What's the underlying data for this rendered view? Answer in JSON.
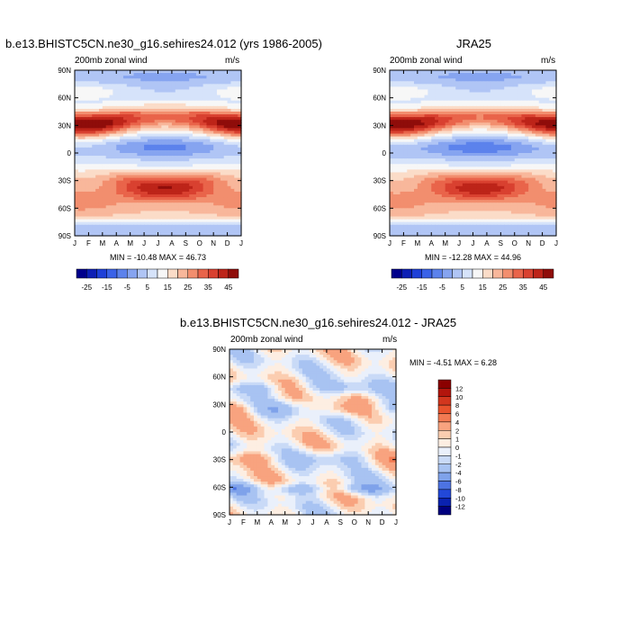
{
  "chart_data": [
    {
      "type": "heatmap",
      "title": "b.e13.BHISTC5CN.ne30_g16.sehires24.012 (yrs 1986-2005)",
      "subtitle_left": "200mb zonal wind",
      "subtitle_right": "m/s",
      "x_tick_labels": [
        "J",
        "F",
        "M",
        "A",
        "M",
        "J",
        "J",
        "A",
        "S",
        "O",
        "N",
        "D",
        "J"
      ],
      "y_tick_labels": [
        "90N",
        "60N",
        "30N",
        "0",
        "30S",
        "60S",
        "90S"
      ],
      "xlim": [
        0,
        12
      ],
      "ylim": [
        -90,
        90
      ],
      "min": -10.48,
      "max": 46.73,
      "stats_text": "MIN = -10.48 MAX =  46.73",
      "colorbar_labels": [
        "-25",
        "-15",
        "-5",
        "5",
        "15",
        "25",
        "35",
        "45"
      ],
      "features": [
        {
          "lat": 30,
          "month": 0.5,
          "value": 45
        },
        {
          "lat": 30,
          "month": 11.5,
          "value": 40
        },
        {
          "lat": -28,
          "month": 6.5,
          "value": 40
        },
        {
          "lat": 5,
          "month": 6.8,
          "value": -10
        }
      ]
    },
    {
      "type": "heatmap",
      "title": "JRA25",
      "subtitle_left": "200mb zonal wind",
      "subtitle_right": "m/s",
      "x_tick_labels": [
        "J",
        "F",
        "M",
        "A",
        "M",
        "J",
        "J",
        "A",
        "S",
        "O",
        "N",
        "D",
        "J"
      ],
      "y_tick_labels": [
        "90N",
        "60N",
        "30N",
        "0",
        "30S",
        "60S",
        "90S"
      ],
      "xlim": [
        0,
        12
      ],
      "ylim": [
        -90,
        90
      ],
      "min": -12.28,
      "max": 44.96,
      "stats_text": "MIN = -12.28 MAX =  44.96",
      "colorbar_labels": [
        "-25",
        "-15",
        "-5",
        "5",
        "15",
        "25",
        "35",
        "45"
      ],
      "features": [
        {
          "lat": 30,
          "month": 0.5,
          "value": 44
        },
        {
          "lat": 30,
          "month": 11.5,
          "value": 40
        },
        {
          "lat": -28,
          "month": 6.5,
          "value": 38
        },
        {
          "lat": 5,
          "month": 6.8,
          "value": -12
        }
      ]
    },
    {
      "type": "heatmap",
      "title": "b.e13.BHISTC5CN.ne30_g16.sehires24.012 - JRA25",
      "subtitle_left": "200mb zonal wind",
      "subtitle_right": "m/s",
      "x_tick_labels": [
        "J",
        "F",
        "M",
        "A",
        "M",
        "J",
        "J",
        "A",
        "S",
        "O",
        "N",
        "D",
        "J"
      ],
      "y_tick_labels": [
        "90N",
        "60N",
        "30N",
        "0",
        "30S",
        "60S",
        "90S"
      ],
      "xlim": [
        0,
        12
      ],
      "ylim": [
        -90,
        90
      ],
      "min": -4.51,
      "max": 6.28,
      "stats_text": "MIN = -4.51 MAX =   6.28",
      "colorbar_labels": [
        "12",
        "10",
        "8",
        "6",
        "4",
        "2",
        "1",
        "0",
        "-1",
        "-2",
        "-4",
        "-6",
        "-8",
        "-10",
        "-12"
      ]
    }
  ],
  "colors": {
    "full_palette": [
      "#00008b",
      "#0d1fb5",
      "#1e40d8",
      "#3a62e8",
      "#5c82ec",
      "#86a4f0",
      "#b0c5f5",
      "#d6e3fa",
      "#f7f7f7",
      "#fbdcc8",
      "#f8b79b",
      "#f28e6e",
      "#e9644a",
      "#d94130",
      "#bd2419",
      "#8f0d0a"
    ],
    "diff_palette": [
      "#8b0000",
      "#b3150d",
      "#d2361e",
      "#e8532d",
      "#f27a52",
      "#f8a37f",
      "#fbcdb0",
      "#fdeee2",
      "#eaf0fb",
      "#c9daf7",
      "#a8c3f2",
      "#7fa2ea",
      "#4d73e2",
      "#2248d8",
      "#0a22b0",
      "#00007f"
    ]
  }
}
